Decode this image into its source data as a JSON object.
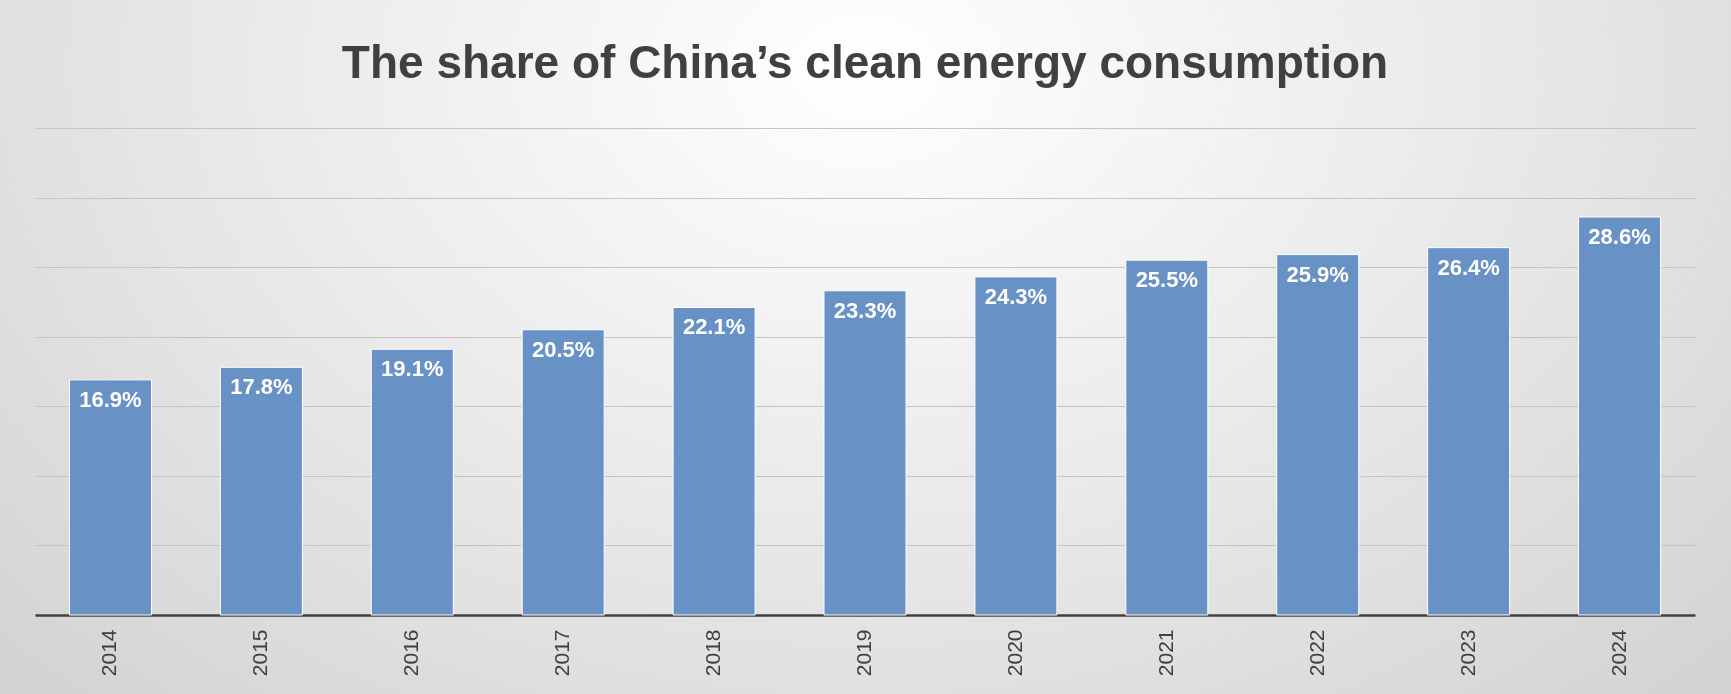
{
  "chart_data": {
    "type": "bar",
    "title": "The share of China’s clean energy consumption",
    "categories": [
      "2014",
      "2015",
      "2016",
      "2017",
      "2018",
      "2019",
      "2020",
      "2021",
      "2022",
      "2023",
      "2024"
    ],
    "values": [
      16.9,
      17.8,
      19.1,
      20.5,
      22.1,
      23.3,
      24.3,
      25.5,
      25.9,
      26.4,
      28.6
    ],
    "value_labels": [
      "16.9%",
      "17.8%",
      "19.1%",
      "20.5%",
      "22.1%",
      "23.3%",
      "24.3%",
      "25.5%",
      "25.9%",
      "26.4%",
      "28.6%"
    ],
    "color": "#6891c6",
    "ylim": [
      0,
      35
    ],
    "yticks": [
      {
        "value": 0,
        "label": null
      },
      {
        "value": 5,
        "label": null
      },
      {
        "value": 10,
        "label": null
      },
      {
        "value": 15,
        "label": null
      },
      {
        "value": 20,
        "label": null
      },
      {
        "value": 25,
        "label": null
      },
      {
        "value": 30,
        "label": null
      },
      {
        "value": 35,
        "label": null
      }
    ],
    "grid": "y",
    "tick_labels": "x"
  }
}
